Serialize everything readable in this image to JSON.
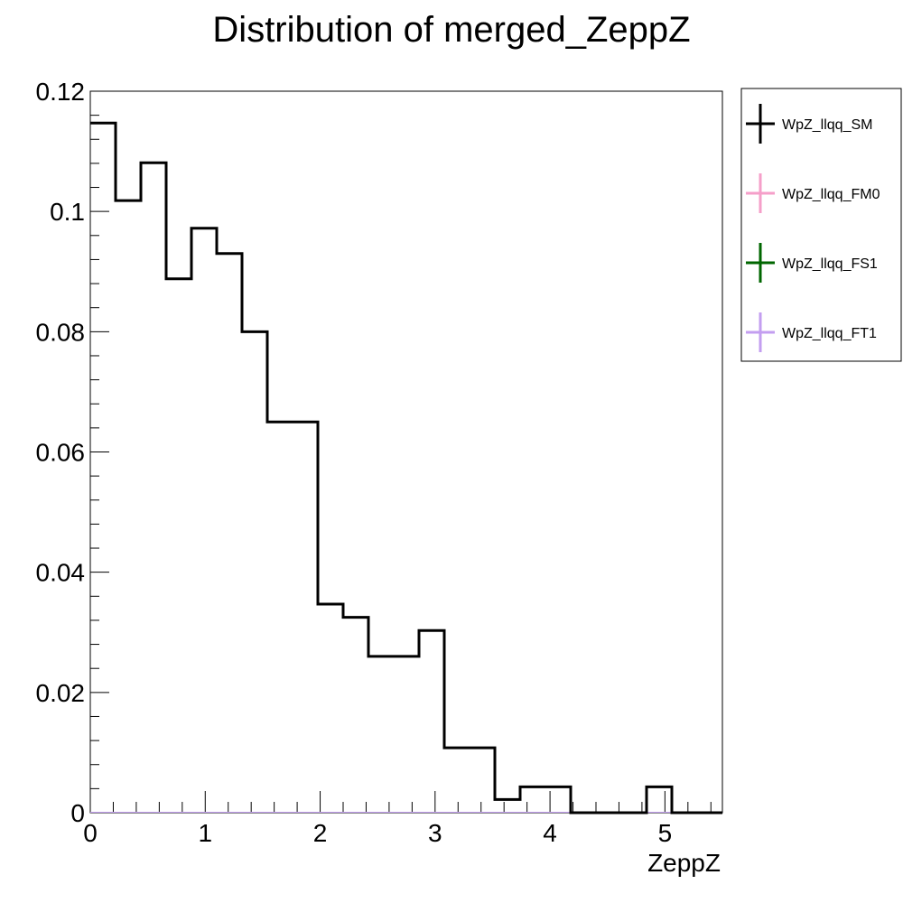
{
  "chart_data": {
    "type": "histogram",
    "title": "Distribution of merged_ZeppZ",
    "xlabel": "ZeppZ",
    "ylabel": "",
    "xlim": [
      0,
      5.5
    ],
    "ylim": [
      0,
      0.12
    ],
    "x_ticks": [
      "0",
      "1",
      "2",
      "3",
      "4",
      "5"
    ],
    "y_ticks": [
      "0",
      "0.02",
      "0.04",
      "0.06",
      "0.08",
      "0.1",
      "0.12"
    ],
    "legend_position": "right, outside plot",
    "series": [
      {
        "name": "WpZ_llqq_SM",
        "color": "#000000",
        "bin_edges": [
          0,
          0.22,
          0.44,
          0.66,
          0.88,
          1.1,
          1.32,
          1.54,
          1.76,
          1.98,
          2.2,
          2.42,
          2.64,
          2.86,
          3.08,
          3.3,
          3.52,
          3.74,
          3.96,
          4.18,
          4.4,
          4.62,
          4.84,
          5.06,
          5.28,
          5.5
        ],
        "values": [
          0.1147,
          0.1018,
          0.1081,
          0.0888,
          0.0972,
          0.093,
          0.08,
          0.065,
          0.065,
          0.0347,
          0.0325,
          0.026,
          0.026,
          0.0303,
          0.0108,
          0.0108,
          0.0022,
          0.0043,
          0.0043,
          0.0,
          0.0,
          0.0,
          0.0043,
          0.0,
          0.0
        ]
      },
      {
        "name": "WpZ_llqq_FM0",
        "color": "#f59fc9",
        "values": []
      },
      {
        "name": "WpZ_llqq_FS1",
        "color": "#006600",
        "values": []
      },
      {
        "name": "WpZ_llqq_FT1",
        "color": "#c39ef0",
        "values": []
      }
    ]
  }
}
